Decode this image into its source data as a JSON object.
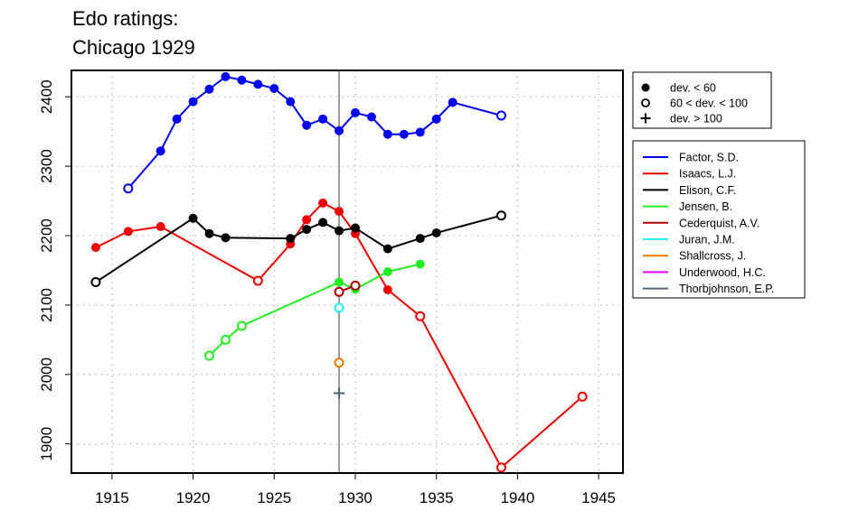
{
  "title_line1": "Edo ratings:",
  "title_line2": "Chicago 1929",
  "chart_data": {
    "type": "line",
    "xlim": [
      1912.5,
      1946.5
    ],
    "ylim": [
      1858,
      2438
    ],
    "x_ticks": [
      "1915",
      "1920",
      "1925",
      "1930",
      "1935",
      "1940",
      "1945"
    ],
    "y_ticks": [
      "1900",
      "2000",
      "2100",
      "2200",
      "2300",
      "2400"
    ],
    "grid": "dotted",
    "highlight_year": 1929,
    "highlight_color": "#9a9a9a",
    "symbol_legend": [
      {
        "symbol": "filled",
        "label": "dev. < 60"
      },
      {
        "symbol": "open",
        "label": "60 < dev. < 100"
      },
      {
        "symbol": "plus",
        "label": "dev. > 100"
      }
    ],
    "series": [
      {
        "name": "Factor, S.D.",
        "color": "#0000ee",
        "points": [
          [
            1916,
            2268,
            "open"
          ],
          [
            1918,
            2322,
            "filled"
          ],
          [
            1919,
            2368,
            "filled"
          ],
          [
            1920,
            2393,
            "filled"
          ],
          [
            1921,
            2411,
            "filled"
          ],
          [
            1922,
            2429,
            "filled"
          ],
          [
            1923,
            2424,
            "filled"
          ],
          [
            1924,
            2418,
            "filled"
          ],
          [
            1925,
            2412,
            "filled"
          ],
          [
            1926,
            2393,
            "filled"
          ],
          [
            1927,
            2359,
            "filled"
          ],
          [
            1928,
            2368,
            "filled"
          ],
          [
            1929,
            2351,
            "filled"
          ],
          [
            1930,
            2377,
            "filled"
          ],
          [
            1931,
            2371,
            "filled"
          ],
          [
            1932,
            2346,
            "filled"
          ],
          [
            1933,
            2346,
            "filled"
          ],
          [
            1934,
            2349,
            "filled"
          ],
          [
            1935,
            2368,
            "filled"
          ],
          [
            1936,
            2392,
            "filled"
          ],
          [
            1939,
            2373,
            "open"
          ]
        ]
      },
      {
        "name": "Isaacs, L.J.",
        "color": "#ee0000",
        "points": [
          [
            1914,
            2183,
            "filled"
          ],
          [
            1916,
            2206,
            "filled"
          ],
          [
            1918,
            2213,
            "filled"
          ],
          [
            1924,
            2135,
            "open"
          ],
          [
            1926,
            2188,
            "filled"
          ],
          [
            1927,
            2223,
            "filled"
          ],
          [
            1928,
            2247,
            "filled"
          ],
          [
            1929,
            2235,
            "filled"
          ],
          [
            1930,
            2203,
            "filled"
          ],
          [
            1932,
            2122,
            "filled"
          ],
          [
            1934,
            2084,
            "open"
          ],
          [
            1939,
            1866,
            "open"
          ],
          [
            1944,
            1968,
            "open"
          ]
        ]
      },
      {
        "name": "Elison, C.F.",
        "color": "#000000",
        "points": [
          [
            1914,
            2133,
            "open"
          ],
          [
            1920,
            2225,
            "filled"
          ],
          [
            1921,
            2203,
            "filled"
          ],
          [
            1922,
            2197,
            "filled"
          ],
          [
            1926,
            2196,
            "filled"
          ],
          [
            1927,
            2209,
            "filled"
          ],
          [
            1928,
            2219,
            "filled"
          ],
          [
            1929,
            2207,
            "filled"
          ],
          [
            1930,
            2211,
            "filled"
          ],
          [
            1932,
            2181,
            "filled"
          ],
          [
            1934,
            2196,
            "filled"
          ],
          [
            1935,
            2204,
            "filled"
          ],
          [
            1939,
            2229,
            "open"
          ]
        ]
      },
      {
        "name": "Jensen, B.",
        "color": "#22ee22",
        "points": [
          [
            1921,
            2027,
            "open"
          ],
          [
            1922,
            2050,
            "open"
          ],
          [
            1923,
            2070,
            "open"
          ],
          [
            1929,
            2133,
            "filled"
          ],
          [
            1930,
            2123,
            "filled"
          ],
          [
            1932,
            2148,
            "filled"
          ],
          [
            1934,
            2159,
            "filled"
          ]
        ]
      },
      {
        "name": "Cederquist, A.V.",
        "color": "#aa0000",
        "points": [
          [
            1929,
            2119,
            "open"
          ],
          [
            1930,
            2128,
            "open"
          ]
        ]
      },
      {
        "name": "Juran, J.M.",
        "color": "#22eeee",
        "points": [
          [
            1929,
            2096,
            "open"
          ]
        ]
      },
      {
        "name": "Shallcross, J.",
        "color": "#ee7700",
        "points": [
          [
            1929,
            2017,
            "open"
          ]
        ]
      },
      {
        "name": "Underwood, H.C.",
        "color": "#ee00ee",
        "points": []
      },
      {
        "name": "Thorbjohnson, E.P.",
        "color": "#556677",
        "points": [
          [
            1929,
            1973,
            "plus"
          ]
        ]
      }
    ]
  }
}
